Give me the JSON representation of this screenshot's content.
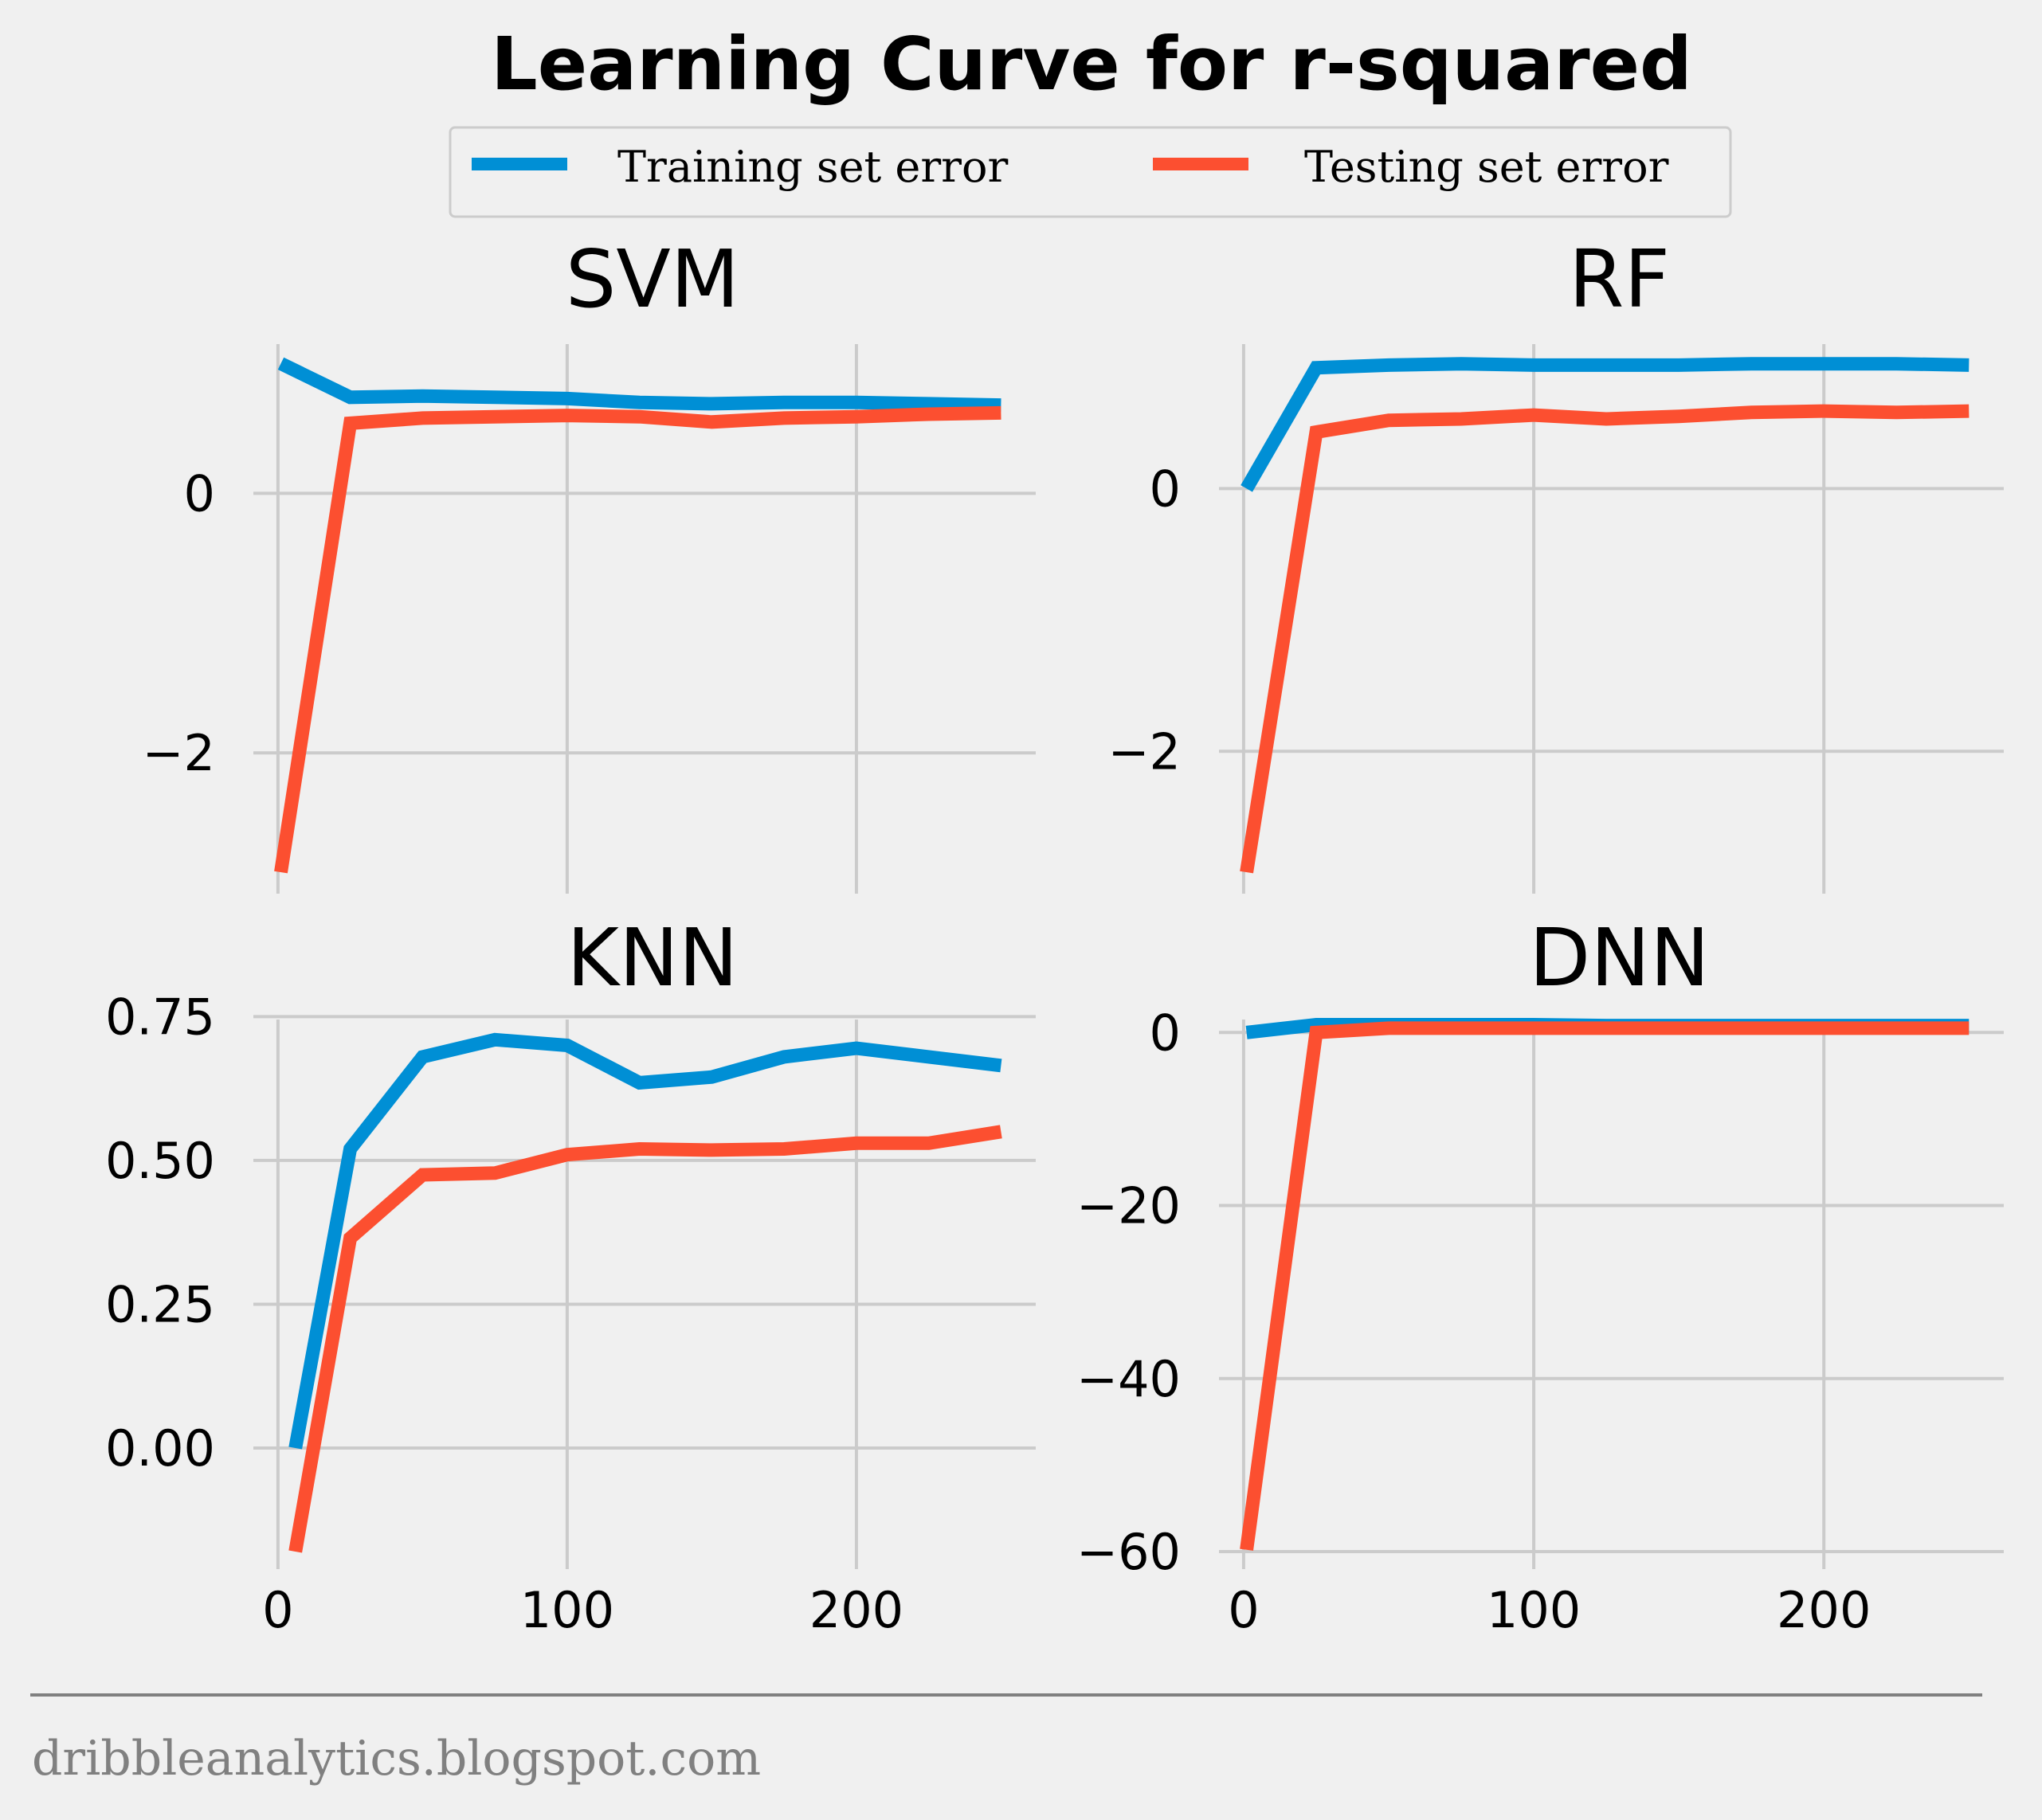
{
  "title": "Learning Curve for r-squared",
  "footer": "dribbleanalytics.blogspot.com",
  "legend": {
    "placement": "top-center",
    "entries": [
      {
        "label": "Training set error",
        "color": "#008fd5"
      },
      {
        "label": "Testing set error",
        "color": "#fc4f30"
      }
    ]
  },
  "chart_data": [
    {
      "type": "line",
      "title": "SVM",
      "xlim": [
        -3,
        262
      ],
      "ylim": [
        -2.95,
        1.15
      ],
      "xticks": [
        {
          "v": 0,
          "label": "0"
        },
        {
          "v": 100,
          "label": "100"
        },
        {
          "v": 200,
          "label": "200"
        }
      ],
      "yticks": [
        {
          "v": -2,
          "label": "−2"
        },
        {
          "v": 0,
          "label": "0"
        }
      ],
      "show_xtick_labels": false,
      "series": [
        {
          "name": "Training set error",
          "color": "#008fd5",
          "x": [
            1,
            25,
            50,
            75,
            100,
            125,
            150,
            175,
            200,
            225,
            250
          ],
          "y": [
            1.0,
            0.74,
            0.75,
            0.74,
            0.73,
            0.7,
            0.69,
            0.7,
            0.7,
            0.69,
            0.68
          ]
        },
        {
          "name": "Testing set error",
          "color": "#fc4f30",
          "x": [
            1,
            25,
            50,
            75,
            100,
            125,
            150,
            175,
            200,
            225,
            250
          ],
          "y": [
            -2.92,
            0.54,
            0.58,
            0.59,
            0.6,
            0.59,
            0.55,
            0.58,
            0.59,
            0.61,
            0.62
          ]
        }
      ]
    },
    {
      "type": "line",
      "title": "RF",
      "xlim": [
        -3,
        262
      ],
      "ylim": [
        -2.95,
        1.1
      ],
      "xticks": [
        {
          "v": 0,
          "label": "0"
        },
        {
          "v": 100,
          "label": "100"
        },
        {
          "v": 200,
          "label": "200"
        }
      ],
      "yticks": [
        {
          "v": -2,
          "label": "−2"
        },
        {
          "v": 0,
          "label": "0"
        }
      ],
      "show_xtick_labels": false,
      "series": [
        {
          "name": "Training set error",
          "color": "#008fd5",
          "x": [
            1,
            25,
            50,
            75,
            100,
            125,
            150,
            175,
            200,
            225,
            250
          ],
          "y": [
            0.0,
            0.92,
            0.94,
            0.95,
            0.94,
            0.94,
            0.94,
            0.95,
            0.95,
            0.95,
            0.94
          ]
        },
        {
          "name": "Testing set error",
          "color": "#fc4f30",
          "x": [
            1,
            25,
            50,
            75,
            100,
            125,
            150,
            175,
            200,
            225,
            250
          ],
          "y": [
            -2.92,
            0.43,
            0.52,
            0.53,
            0.56,
            0.53,
            0.55,
            0.58,
            0.59,
            0.58,
            0.59
          ]
        }
      ]
    },
    {
      "type": "line",
      "title": "KNN",
      "xlim": [
        -3,
        262
      ],
      "ylim": [
        -0.18,
        0.745
      ],
      "xticks": [
        {
          "v": 0,
          "label": "0"
        },
        {
          "v": 100,
          "label": "100"
        },
        {
          "v": 200,
          "label": "200"
        }
      ],
      "yticks": [
        {
          "v": 0,
          "label": "0.00"
        },
        {
          "v": 0.25,
          "label": "0.25"
        },
        {
          "v": 0.5,
          "label": "0.50"
        },
        {
          "v": 0.75,
          "label": "0.75"
        }
      ],
      "show_xtick_labels": true,
      "series": [
        {
          "name": "Training set error",
          "color": "#008fd5",
          "x": [
            6,
            25,
            50,
            75,
            100,
            125,
            150,
            175,
            200,
            225,
            250
          ],
          "y": [
            0.0,
            0.52,
            0.68,
            0.71,
            0.7,
            0.635,
            0.645,
            0.68,
            0.695,
            0.68,
            0.665
          ]
        },
        {
          "name": "Testing set error",
          "color": "#fc4f30",
          "x": [
            6,
            25,
            50,
            75,
            100,
            125,
            150,
            175,
            200,
            225,
            250
          ],
          "y": [
            -0.18,
            0.365,
            0.475,
            0.478,
            0.51,
            0.52,
            0.518,
            0.52,
            0.53,
            0.53,
            0.55
          ]
        }
      ]
    },
    {
      "type": "line",
      "title": "DNN",
      "xlim": [
        -3,
        262
      ],
      "ylim": [
        -60,
        1.5
      ],
      "xticks": [
        {
          "v": 0,
          "label": "0"
        },
        {
          "v": 100,
          "label": "100"
        },
        {
          "v": 200,
          "label": "200"
        }
      ],
      "yticks": [
        {
          "v": -60,
          "label": "−60"
        },
        {
          "v": -40,
          "label": "−40"
        },
        {
          "v": -20,
          "label": "−20"
        },
        {
          "v": 0,
          "label": "0"
        }
      ],
      "show_xtick_labels": true,
      "series": [
        {
          "name": "Training set error",
          "color": "#008fd5",
          "x": [
            1,
            25,
            50,
            75,
            100,
            125,
            150,
            175,
            200,
            225,
            250
          ],
          "y": [
            0.0,
            0.9,
            0.9,
            0.9,
            0.9,
            0.8,
            0.8,
            0.8,
            0.8,
            0.8,
            0.8
          ]
        },
        {
          "name": "Testing set error",
          "color": "#fc4f30",
          "x": [
            1,
            25,
            50,
            75,
            100,
            125,
            150,
            175,
            200,
            225,
            250
          ],
          "y": [
            -59.8,
            0.0,
            0.5,
            0.5,
            0.5,
            0.5,
            0.5,
            0.5,
            0.5,
            0.5,
            0.5
          ]
        }
      ]
    }
  ]
}
